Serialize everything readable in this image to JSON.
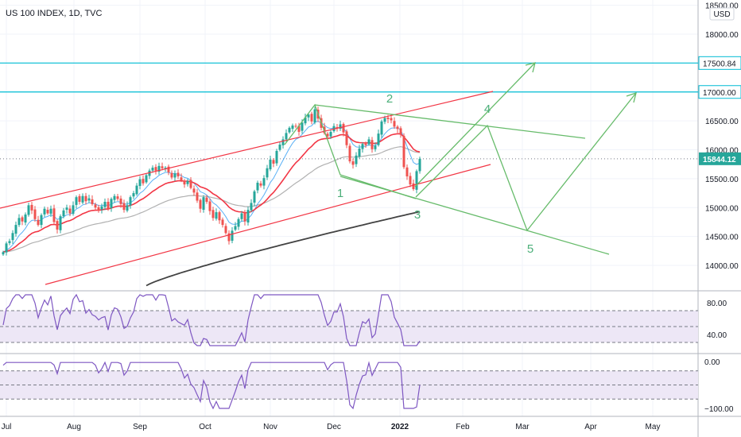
{
  "header": {
    "title": "US 100 INDEX, 1D, TVC",
    "currency": "USD"
  },
  "colors": {
    "up": "#26a69a",
    "down": "#ef5350",
    "channel": "#f23645",
    "wave": "#66bb6a",
    "level": "#00bcd4",
    "ma_fast": "#f23645",
    "ma_mid": "#9e9e9e",
    "ma_slow": "#424242",
    "ma_short": "#2196f3",
    "osc": "#7e57c2",
    "osc_band": "#ede7f6"
  },
  "chart_data": {
    "type": "candlestick",
    "title": "US 100 INDEX, 1D, TVC",
    "currency": "USD",
    "ylim": [
      13600,
      18500
    ],
    "y_ticks": [
      14000,
      14500,
      15000,
      15500,
      16000,
      16500,
      17000,
      17500,
      18000,
      18500
    ],
    "y_tick_labels": [
      "14000.00",
      "14500.00",
      "15000.00",
      "15500.00",
      "16000.00",
      "16500.00",
      "17000.00",
      "17500.00",
      "18000.00",
      "18500.00"
    ],
    "x_labels": [
      "Jul",
      "Aug",
      "Sep",
      "Oct",
      "Nov",
      "Dec",
      "2022",
      "Feb",
      "Mar",
      "Apr",
      "May"
    ],
    "price_tags": [
      {
        "value": 17500.84,
        "label": "17500.84",
        "style": "level"
      },
      {
        "value": 17000.0,
        "label": "17000.00",
        "style": "level"
      },
      {
        "value": 15844.12,
        "label": "15844.12",
        "style": "last"
      }
    ],
    "levels": [
      17500.84,
      17000.0
    ],
    "last_price": 15844.12,
    "closes": [
      14230,
      14380,
      14420,
      14560,
      14700,
      14820,
      14760,
      14880,
      15040,
      14950,
      14800,
      14700,
      14870,
      14980,
      14900,
      14980,
      14750,
      14620,
      14850,
      14950,
      15000,
      14900,
      15040,
      15180,
      15100,
      15200,
      15110,
      15160,
      15060,
      15000,
      14950,
      15020,
      15100,
      14980,
      15150,
      15200,
      15150,
      15060,
      14960,
      15040,
      15180,
      15250,
      15380,
      15490,
      15420,
      15560,
      15640,
      15690,
      15640,
      15720,
      15680,
      15690,
      15610,
      15520,
      15590,
      15540,
      15470,
      15400,
      15460,
      15340,
      15260,
      15120,
      14980,
      15180,
      15100,
      14940,
      14820,
      14920,
      14780,
      14700,
      14560,
      14420,
      14600,
      14680,
      14800,
      14900,
      14760,
      14960,
      15080,
      15280,
      15430,
      15380,
      15510,
      15680,
      15830,
      15760,
      15980,
      16090,
      16180,
      16290,
      16380,
      16420,
      16410,
      16310,
      16470,
      16560,
      16610,
      16490,
      16700,
      16540,
      16380,
      16290,
      16230,
      16310,
      16410,
      16370,
      16440,
      16300,
      16080,
      15800,
      15740,
      15900,
      16020,
      16100,
      16080,
      16180,
      16010,
      16070,
      16280,
      16490,
      16550,
      16530,
      16510,
      16400,
      16360,
      16260,
      15700,
      15540,
      15400,
      15320,
      15630,
      15844
    ],
    "osc1": {
      "ylim": [
        20,
        95
      ],
      "ticks": [
        80,
        40
      ],
      "tick_labels": [
        "80.00",
        "40.00"
      ],
      "band": [
        30,
        70
      ],
      "mid": 50
    },
    "osc2": {
      "ylim": [
        -105,
        5
      ],
      "ticks": [
        0,
        -100
      ],
      "tick_labels": [
        "0.00",
        "−100.00"
      ],
      "band": [
        -80,
        -20
      ],
      "mid": -50
    },
    "wave_labels": [
      "1",
      "2",
      "3",
      "4",
      "5"
    ]
  }
}
